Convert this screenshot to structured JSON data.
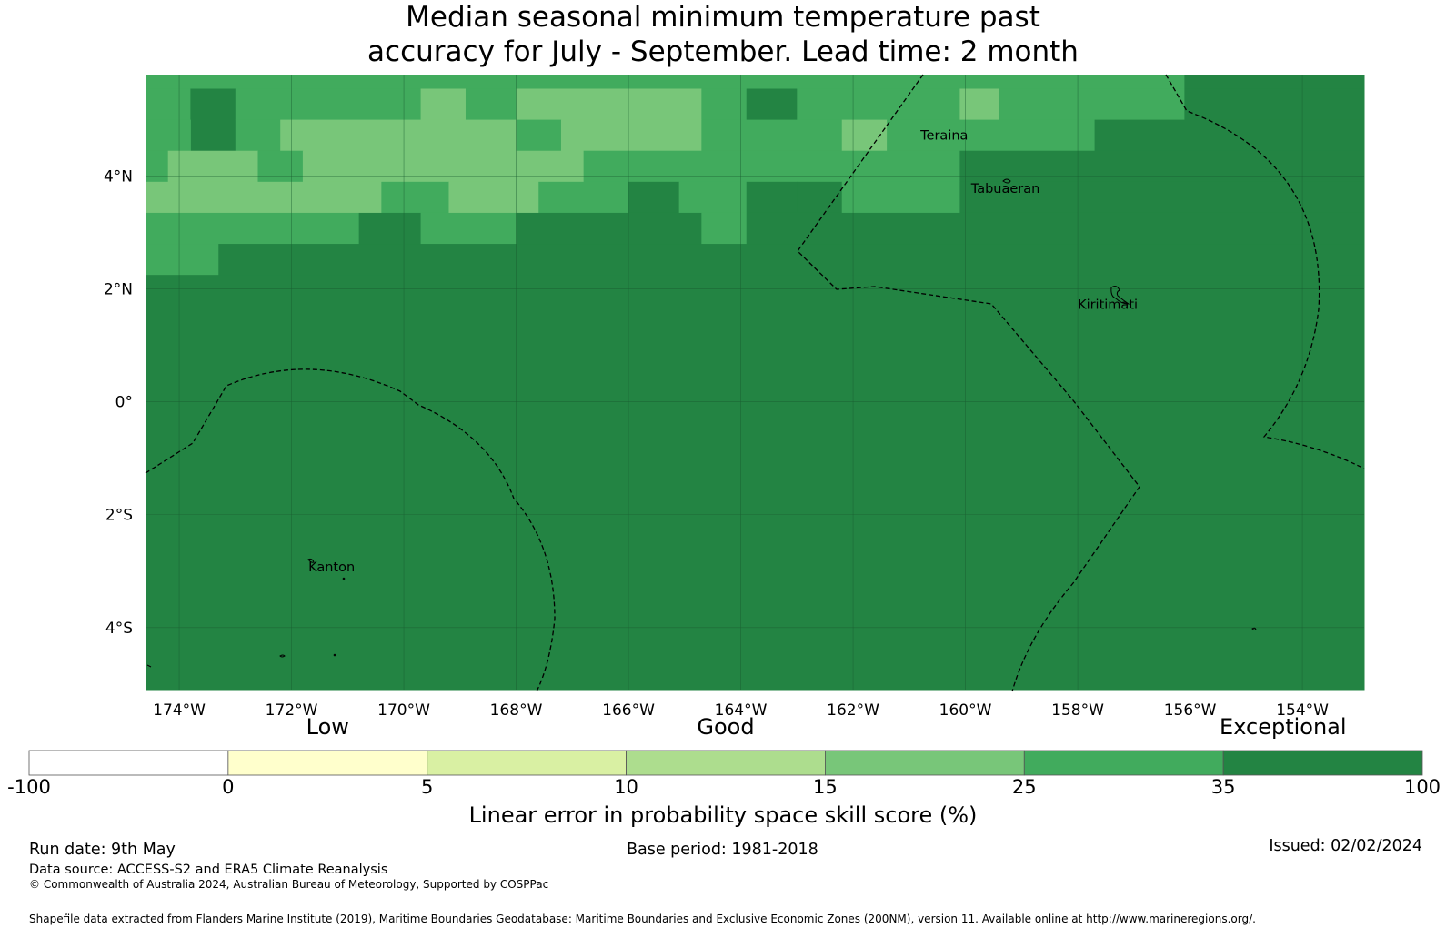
{
  "title": {
    "line1": "Median seasonal minimum temperature past",
    "line2": "accuracy for July - September. Lead time: 2 month"
  },
  "map": {
    "lon_range": [
      -174.6,
      -152.9
    ],
    "lat_range": [
      -5.1,
      5.8
    ],
    "x_ticks": [
      {
        "value": -174,
        "label": "174°W"
      },
      {
        "value": -172,
        "label": "172°W"
      },
      {
        "value": -170,
        "label": "170°W"
      },
      {
        "value": -168,
        "label": "168°W"
      },
      {
        "value": -166,
        "label": "166°W"
      },
      {
        "value": -164,
        "label": "164°W"
      },
      {
        "value": -162,
        "label": "162°W"
      },
      {
        "value": -160,
        "label": "160°W"
      },
      {
        "value": -158,
        "label": "158°W"
      },
      {
        "value": -156,
        "label": "156°W"
      },
      {
        "value": -154,
        "label": "154°W"
      }
    ],
    "y_ticks": [
      {
        "value": 4,
        "label": "4°N"
      },
      {
        "value": 2,
        "label": "2°N"
      },
      {
        "value": 0,
        "label": "0°"
      },
      {
        "value": -2,
        "label": "2°S"
      },
      {
        "value": -4,
        "label": "4°S"
      }
    ],
    "places": [
      {
        "name": "Teraina",
        "lon": -160.8,
        "lat": 4.65
      },
      {
        "name": "Tabuaeran",
        "lon": -159.9,
        "lat": 3.7
      },
      {
        "name": "Kiritimati",
        "lon": -158.0,
        "lat": 1.65
      },
      {
        "name": "Kanton",
        "lon": -171.7,
        "lat": -3.0
      }
    ],
    "skill_cells": [
      {
        "lon": [
          -174.6,
          -172.9
        ],
        "lat": [
          5.55,
          5.8
        ],
        "class": 6
      },
      {
        "lon": [
          -172.9,
          -159.4
        ],
        "lat": [
          5.55,
          5.8
        ],
        "class": 6
      },
      {
        "lon": [
          -159.4,
          -156.1
        ],
        "lat": [
          5.55,
          5.8
        ],
        "class": 6
      },
      {
        "lon": [
          -156.1,
          -152.9
        ],
        "lat": [
          5.55,
          5.8
        ],
        "class": 7
      },
      {
        "lon": [
          -174.6,
          -172.9
        ],
        "lat": [
          5.55,
          5.8
        ],
        "class": 6
      },
      {
        "lon": [
          -174.6,
          -173.8
        ],
        "lat": [
          5.0,
          5.55
        ],
        "class": 6
      },
      {
        "lon": [
          -173.8,
          -173.0
        ],
        "lat": [
          4.45,
          5.55
        ],
        "class": 7
      },
      {
        "lon": [
          -173.0,
          -169.7
        ],
        "lat": [
          5.0,
          5.55
        ],
        "class": 6
      },
      {
        "lon": [
          -169.7,
          -168.9
        ],
        "lat": [
          5.0,
          5.55
        ],
        "class": 5
      },
      {
        "lon": [
          -168.9,
          -168.0
        ],
        "lat": [
          5.0,
          5.55
        ],
        "class": 6
      },
      {
        "lon": [
          -168.0,
          -164.7
        ],
        "lat": [
          5.0,
          5.55
        ],
        "class": 5
      },
      {
        "lon": [
          -164.7,
          -163.9
        ],
        "lat": [
          5.0,
          5.55
        ],
        "class": 6
      },
      {
        "lon": [
          -163.9,
          -163.0
        ],
        "lat": [
          5.0,
          5.55
        ],
        "class": 7
      },
      {
        "lon": [
          -163.0,
          -160.1
        ],
        "lat": [
          5.0,
          5.55
        ],
        "class": 6
      },
      {
        "lon": [
          -160.1,
          -159.4
        ],
        "lat": [
          5.0,
          5.55
        ],
        "class": 5
      },
      {
        "lon": [
          -159.4,
          -156.1
        ],
        "lat": [
          5.0,
          5.55
        ],
        "class": 6
      },
      {
        "lon": [
          -156.1,
          -152.9
        ],
        "lat": [
          5.0,
          5.55
        ],
        "class": 7
      },
      {
        "lon": [
          -174.6,
          -173.8
        ],
        "lat": [
          4.45,
          5.0
        ],
        "class": 6
      },
      {
        "lon": [
          -173.0,
          -172.2
        ],
        "lat": [
          4.45,
          5.0
        ],
        "class": 6
      },
      {
        "lon": [
          -172.2,
          -168.0
        ],
        "lat": [
          4.45,
          5.0
        ],
        "class": 5
      },
      {
        "lon": [
          -168.0,
          -167.2
        ],
        "lat": [
          4.45,
          5.0
        ],
        "class": 6
      },
      {
        "lon": [
          -167.2,
          -164.7
        ],
        "lat": [
          4.45,
          5.0
        ],
        "class": 5
      },
      {
        "lon": [
          -164.7,
          -162.2
        ],
        "lat": [
          4.45,
          5.0
        ],
        "class": 6
      },
      {
        "lon": [
          -162.2,
          -161.4
        ],
        "lat": [
          4.45,
          5.0
        ],
        "class": 5
      },
      {
        "lon": [
          -161.4,
          -157.7
        ],
        "lat": [
          4.45,
          5.0
        ],
        "class": 6
      },
      {
        "lon": [
          -157.7,
          -152.9
        ],
        "lat": [
          4.45,
          5.0
        ],
        "class": 7
      },
      {
        "lon": [
          -174.6,
          -174.2
        ],
        "lat": [
          3.9,
          4.45
        ],
        "class": 6
      },
      {
        "lon": [
          -174.2,
          -172.6
        ],
        "lat": [
          3.9,
          4.45
        ],
        "class": 5
      },
      {
        "lon": [
          -172.6,
          -171.8
        ],
        "lat": [
          3.9,
          4.45
        ],
        "class": 6
      },
      {
        "lon": [
          -171.8,
          -166.8
        ],
        "lat": [
          3.9,
          4.45
        ],
        "class": 5
      },
      {
        "lon": [
          -166.8,
          -160.1
        ],
        "lat": [
          3.9,
          4.45
        ],
        "class": 6
      },
      {
        "lon": [
          -160.1,
          -152.9
        ],
        "lat": [
          3.9,
          4.45
        ],
        "class": 7
      },
      {
        "lon": [
          -174.6,
          -170.4
        ],
        "lat": [
          3.35,
          3.9
        ],
        "class": 5
      },
      {
        "lon": [
          -170.4,
          -169.2
        ],
        "lat": [
          3.35,
          3.9
        ],
        "class": 6
      },
      {
        "lon": [
          -169.2,
          -167.6
        ],
        "lat": [
          3.35,
          3.9
        ],
        "class": 5
      },
      {
        "lon": [
          -167.6,
          -166.0
        ],
        "lat": [
          3.35,
          3.9
        ],
        "class": 6
      },
      {
        "lon": [
          -166.0,
          -165.1
        ],
        "lat": [
          3.35,
          3.9
        ],
        "class": 7
      },
      {
        "lon": [
          -165.1,
          -163.9
        ],
        "lat": [
          3.35,
          3.9
        ],
        "class": 6
      },
      {
        "lon": [
          -163.9,
          -163.0
        ],
        "lat": [
          3.35,
          3.9
        ],
        "class": 7
      },
      {
        "lon": [
          -163.0,
          -162.2
        ],
        "lat": [
          3.35,
          3.9
        ],
        "class": 7
      },
      {
        "lon": [
          -162.2,
          -160.1
        ],
        "lat": [
          3.35,
          3.9
        ],
        "class": 6
      },
      {
        "lon": [
          -160.1,
          -152.9
        ],
        "lat": [
          3.35,
          3.9
        ],
        "class": 7
      },
      {
        "lon": [
          -174.6,
          -170.8
        ],
        "lat": [
          2.8,
          3.35
        ],
        "class": 6
      },
      {
        "lon": [
          -170.8,
          -169.7
        ],
        "lat": [
          2.8,
          3.35
        ],
        "class": 7
      },
      {
        "lon": [
          -169.7,
          -168.0
        ],
        "lat": [
          2.8,
          3.35
        ],
        "class": 6
      },
      {
        "lon": [
          -168.0,
          -164.7
        ],
        "lat": [
          2.8,
          3.35
        ],
        "class": 7
      },
      {
        "lon": [
          -164.7,
          -163.9
        ],
        "lat": [
          2.8,
          3.35
        ],
        "class": 6
      },
      {
        "lon": [
          -163.9,
          -152.9
        ],
        "lat": [
          2.8,
          3.35
        ],
        "class": 7
      },
      {
        "lon": [
          -174.6,
          -173.3
        ],
        "lat": [
          2.25,
          2.8
        ],
        "class": 6
      },
      {
        "lon": [
          -173.3,
          -152.9
        ],
        "lat": [
          2.25,
          2.8
        ],
        "class": 7
      },
      {
        "lon": [
          -174.6,
          -152.9
        ],
        "lat": [
          -5.1,
          2.25
        ],
        "class": 7
      }
    ],
    "colors": {
      "grid": "#1a5c30",
      "land": "#000000"
    }
  },
  "colorbar": {
    "band_labels": [
      {
        "text": "Low",
        "at": 1.5
      },
      {
        "text": "Good",
        "at": 3.5
      },
      {
        "text": "Exceptional",
        "at": 6.3
      }
    ],
    "ticks": [
      "-100",
      "0",
      "5",
      "10",
      "15",
      "25",
      "35",
      "100"
    ],
    "colors": [
      "#ffffff",
      "#ffffcc",
      "#d9f0a3",
      "#addd8e",
      "#78c679",
      "#41ab5d",
      "#238443"
    ],
    "title": "Linear error in probability space skill score (%)"
  },
  "footer": {
    "run_date": "Run date: 9th May",
    "base_period": "Base period: 1981-2018",
    "issued": "Issued: 02/02/2024",
    "data_source": "Data source: ACCESS-S2 and ERA5 Climate Reanalysis",
    "copyright": "© Commonwealth of Australia 2024, Australian Bureau of Meteorology, Supported by COSPPac",
    "shapefile": "Shapefile data extracted from Flanders Marine Institute (2019), Maritime Boundaries Geodatabase: Maritime Boundaries and Exclusive Economic Zones (200NM), version 11. Available online at http://www.marineregions.org/."
  }
}
